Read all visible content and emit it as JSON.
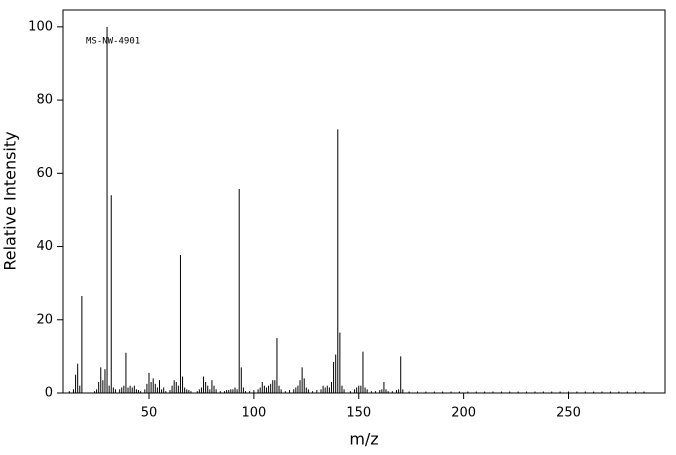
{
  "chart_data": {
    "type": "bar",
    "annotation": "MS-NW-4901",
    "x_label": "m/z",
    "y_label": "Relative Intensity",
    "color": "#000000",
    "x": [
      12,
      14,
      15,
      16,
      17,
      18,
      24,
      25,
      26,
      27,
      28,
      29,
      30,
      31,
      32,
      33,
      34,
      36,
      37,
      38,
      39,
      40,
      41,
      42,
      43,
      44,
      45,
      46,
      48,
      49,
      50,
      51,
      52,
      53,
      54,
      55,
      56,
      57,
      58,
      60,
      61,
      62,
      63,
      64,
      65,
      66,
      67,
      68,
      69,
      70,
      73,
      74,
      75,
      76,
      77,
      78,
      79,
      80,
      81,
      82,
      84,
      86,
      87,
      88,
      89,
      90,
      91,
      92,
      93,
      94,
      95,
      96,
      98,
      100,
      102,
      103,
      104,
      105,
      106,
      107,
      108,
      109,
      110,
      111,
      112,
      113,
      115,
      117,
      119,
      120,
      121,
      122,
      123,
      124,
      125,
      126,
      128,
      130,
      132,
      133,
      134,
      135,
      136,
      137,
      138,
      139,
      140,
      141,
      142,
      143,
      146,
      148,
      149,
      150,
      151,
      152,
      153,
      154,
      156,
      158,
      160,
      161,
      162,
      163,
      164,
      166,
      168,
      169,
      170,
      171,
      174,
      178,
      182,
      186,
      190,
      194,
      198,
      202,
      206,
      210,
      214,
      218,
      222,
      226,
      230,
      234,
      238,
      242,
      246,
      250,
      254,
      258,
      262,
      266,
      270,
      274,
      278,
      282,
      286
    ],
    "values": [
      0.5,
      1,
      5,
      8,
      2,
      26.5,
      0.5,
      1,
      3,
      7,
      3.5,
      6.5,
      100,
      2,
      54,
      1.5,
      1,
      1,
      1.5,
      2,
      11,
      1.5,
      2,
      1.5,
      2,
      1,
      0.8,
      0.5,
      1,
      2.5,
      5.5,
      3,
      4,
      2.5,
      1.5,
      3.5,
      1,
      1.5,
      0.5,
      0.8,
      2,
      3.5,
      3,
      2,
      37.7,
      4.5,
      1.5,
      1,
      0.8,
      0.5,
      0.5,
      1,
      1.5,
      4.5,
      3,
      2,
      1,
      3.5,
      2,
      1,
      0.5,
      0.5,
      0.8,
      0.8,
      1,
      1,
      1.5,
      1,
      55.7,
      7,
      1.5,
      0.5,
      0.5,
      0.8,
      1,
      1.5,
      3,
      2,
      1.5,
      2,
      2.5,
      3.5,
      3.5,
      15,
      2,
      1,
      0.5,
      0.8,
      1,
      1.5,
      2,
      3.5,
      7,
      4,
      1.5,
      1,
      0.5,
      0.8,
      1,
      2,
      1.5,
      2,
      1.5,
      3,
      8.5,
      10.5,
      72,
      16.5,
      2,
      1,
      0.5,
      1,
      1.5,
      2,
      2,
      11.3,
      1.5,
      1,
      0.5,
      0.5,
      0.8,
      1,
      3,
      1,
      0.5,
      0.5,
      0.8,
      1,
      10,
      1,
      0.4,
      0.4,
      0.4,
      0.4,
      0.4,
      0.4,
      0.4,
      0.4,
      0.4,
      0.4,
      0.4,
      0.4,
      0.4,
      0.4,
      0.4,
      0.4,
      0.4,
      0.4,
      0.4,
      0.4,
      0.4,
      0.4,
      0.4,
      0.4,
      0.4,
      0.4,
      0.4,
      0.4,
      0.4
    ],
    "xlim": [
      9,
      296
    ],
    "ylim": [
      0,
      104.6
    ],
    "xticks": [
      50,
      100,
      150,
      200,
      250
    ],
    "yticks": [
      0,
      20,
      40,
      60,
      80,
      100
    ]
  }
}
